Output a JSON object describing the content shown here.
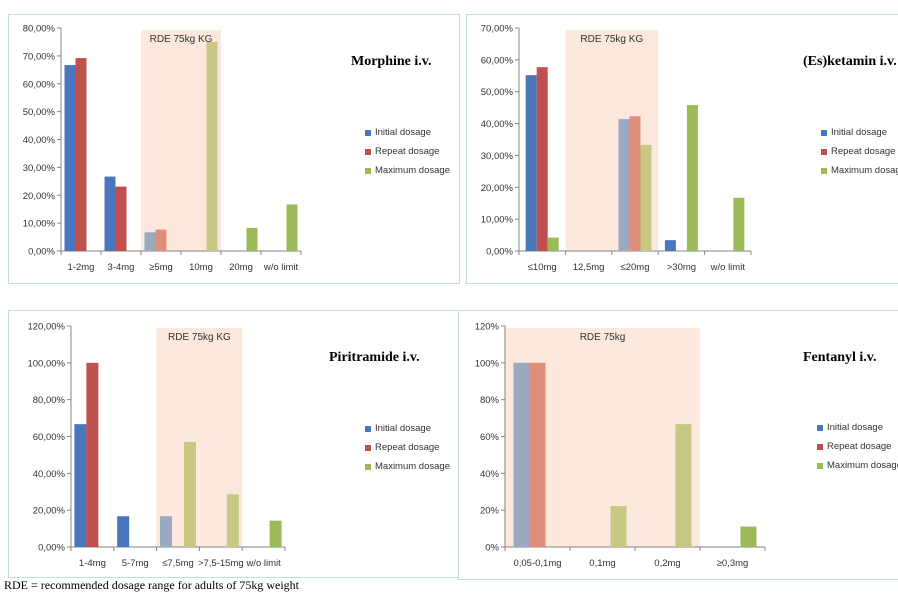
{
  "colors": {
    "initial": "#4a76bd",
    "repeat": "#c0504d",
    "maximum": "#9bbb59",
    "initial_shaded": "#9aa8c0",
    "repeat_shaded": "#e08e7c",
    "maximum_shaded": "#c6c883",
    "rde_band": "#fce8dc",
    "axis": "#868686",
    "grid": "#d9d9d9"
  },
  "footnote": "RDE = recommended dosage range for adults of 75kg weight",
  "chart_data": [
    {
      "type": "bar",
      "title": "Morphine i.v.",
      "band_label": "RDE 75kg KG",
      "band_categories": [
        2,
        3
      ],
      "categories": [
        "1-2mg",
        "3-4mg",
        "≥5mg",
        "10mg",
        "20mg",
        "w/o limit"
      ],
      "yticks": [
        "0,00%",
        "10,00%",
        "20,00%",
        "30,00%",
        "40,00%",
        "50,00%",
        "60,00%",
        "70,00%",
        "80,00%"
      ],
      "ylim": [
        0,
        80
      ],
      "series": [
        {
          "name": "Initial dosage",
          "values": [
            66.7,
            26.7,
            6.7,
            0,
            0,
            0
          ]
        },
        {
          "name": "Repeat dosage",
          "values": [
            69.2,
            23.1,
            7.7,
            0,
            0,
            0
          ]
        },
        {
          "name": "Maximum dosage",
          "values": [
            0,
            0,
            0,
            75.0,
            8.3,
            16.7
          ]
        }
      ]
    },
    {
      "type": "bar",
      "title": "(Es)ketamin i.v.",
      "band_label": "RDE 75kg KG",
      "band_categories": [
        1,
        2
      ],
      "categories": [
        "≤10mg",
        "12,5mg",
        "≤20mg",
        ">30mg",
        "w/o limit"
      ],
      "yticks": [
        "0,00%",
        "10,00%",
        "20,00%",
        "30,00%",
        "40,00%",
        "50,00%",
        "60,00%",
        "70,00%"
      ],
      "ylim": [
        0,
        70
      ],
      "series": [
        {
          "name": "Initial dosage",
          "values": [
            55.2,
            0,
            41.4,
            3.4,
            0
          ]
        },
        {
          "name": "Repeat dosage",
          "values": [
            57.7,
            0,
            42.3,
            0,
            0
          ]
        },
        {
          "name": "Maximum dosage",
          "values": [
            4.2,
            0,
            33.3,
            45.8,
            16.7
          ]
        }
      ]
    },
    {
      "type": "bar",
      "title": "Piritramide i.v.",
      "band_label": "RDE 75kg KG",
      "band_categories": [
        2,
        3
      ],
      "categories": [
        "1-4mg",
        "5-7mg",
        "≤7,5mg",
        ">7,5-15mg",
        "w/o limit"
      ],
      "yticks": [
        "0,00%",
        "20,00%",
        "40,00%",
        "60,00%",
        "80,00%",
        "100,00%",
        "120,00%"
      ],
      "ylim": [
        0,
        120
      ],
      "series": [
        {
          "name": "Initial dosage",
          "values": [
            66.7,
            16.7,
            16.7,
            0,
            0
          ]
        },
        {
          "name": "Repeat dosage",
          "values": [
            100,
            0,
            0,
            0,
            0
          ]
        },
        {
          "name": "Maximum dosage",
          "values": [
            0,
            0,
            57.1,
            28.6,
            14.3
          ]
        }
      ]
    },
    {
      "type": "bar",
      "title": "Fentanyl i.v.",
      "band_label": "RDE 75kg",
      "band_categories": [
        0,
        2
      ],
      "categories": [
        "0,05-0,1mg",
        "0,1mg",
        "0,2mg",
        "≥0,3mg"
      ],
      "yticks": [
        "0%",
        "20%",
        "40%",
        "60%",
        "80%",
        "100%",
        "120%"
      ],
      "ylim": [
        0,
        120
      ],
      "series": [
        {
          "name": "Initial dosage",
          "values": [
            100,
            0,
            0,
            0
          ]
        },
        {
          "name": "Repeat dosage",
          "values": [
            100,
            0,
            0,
            0
          ]
        },
        {
          "name": "Maximum dosage",
          "values": [
            0,
            22.2,
            66.7,
            11.1
          ]
        }
      ]
    }
  ]
}
